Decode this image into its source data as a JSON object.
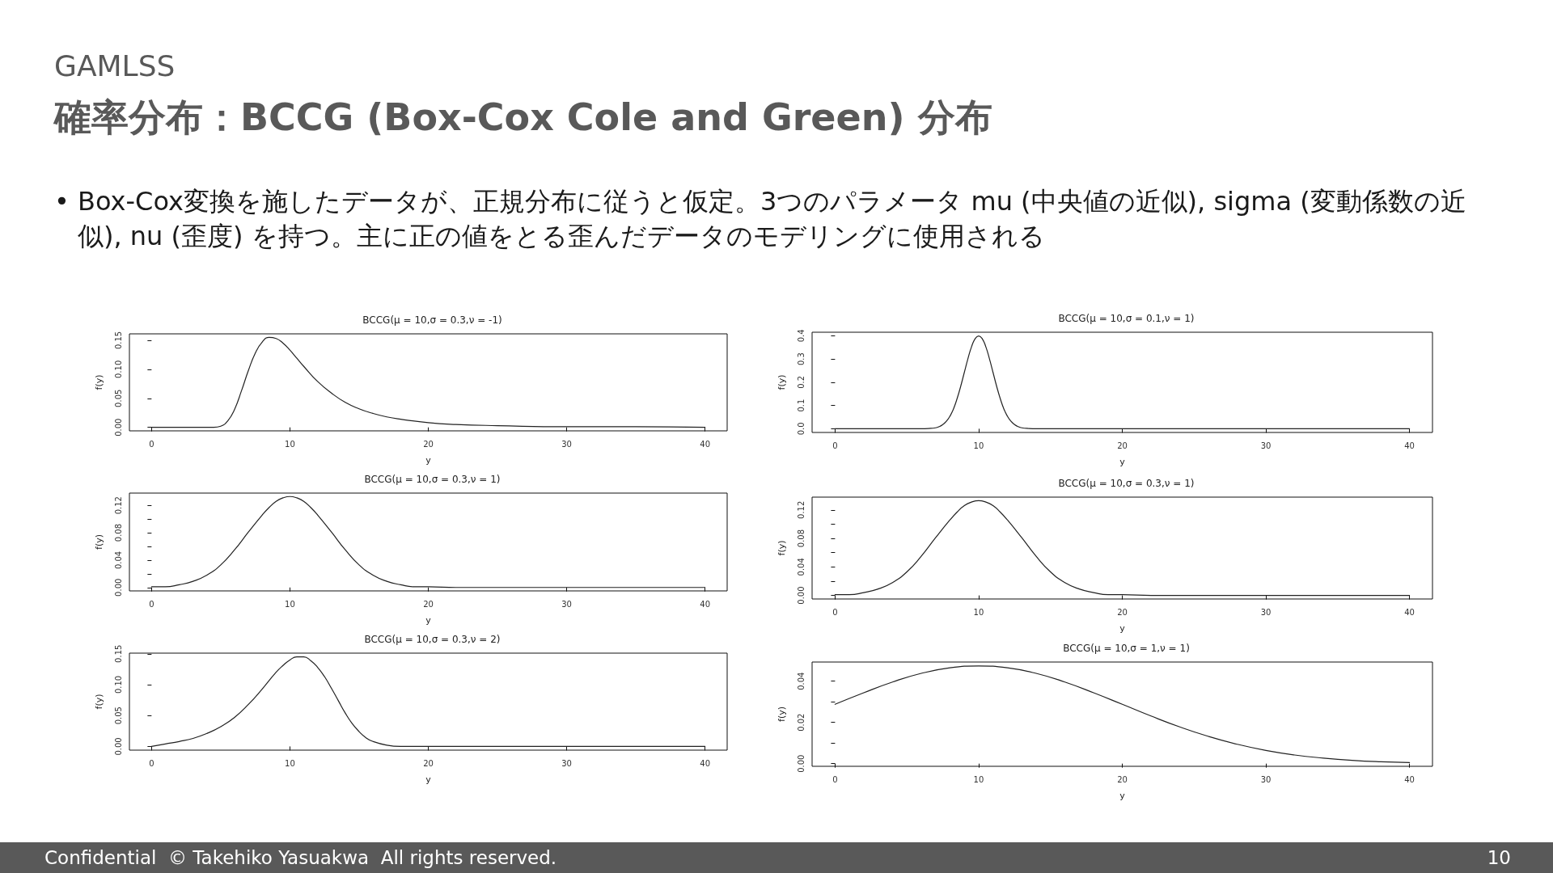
{
  "chart_data": [
    {
      "type": "other",
      "title": "確率分布：BCCG (Box-Cox Cole and Green) 分布",
      "subtitle": "GAMLSS",
      "annotations": [
        "• Box-Cox変換を施したデータが、正規分布に従うと仮定。3つのパラメータ mu (中央値の近似), sigma (変動係数の近似), nu (歪度) を持つ。主に正の値をとる歪んだデータのモデリングに使用される",
        "Confidential  © Takehiko Yasuakwa  All rights reserved.",
        "10"
      ]
    },
    {
      "type": "line",
      "title": "BCCG(μ = 10,σ = 0.3,ν = -1)",
      "xlabel": "y",
      "ylabel": "f(y)",
      "color": "#222222",
      "marker": "none",
      "line_style": "solid",
      "x": [
        0,
        1,
        2,
        3,
        4,
        4.5,
        5,
        5.5,
        6,
        6.5,
        7,
        7.5,
        8,
        8.5,
        9,
        9.5,
        10,
        10.5,
        11,
        12,
        13,
        14,
        15,
        16,
        17,
        18,
        20,
        22,
        25,
        30,
        35,
        40
      ],
      "values": [
        0,
        0,
        0,
        0,
        0,
        0,
        0.002,
        0.011,
        0.031,
        0.063,
        0.098,
        0.128,
        0.147,
        0.155,
        0.153,
        0.145,
        0.133,
        0.119,
        0.105,
        0.079,
        0.059,
        0.043,
        0.032,
        0.024,
        0.018,
        0.014,
        0.008,
        0.005,
        0.003,
        0.001,
        0.001,
        0
      ],
      "xlim": [
        -1.6,
        41.6
      ],
      "xticks": [
        0,
        10,
        20,
        30,
        40
      ],
      "ylim": [
        -0.006,
        0.161
      ],
      "yticks": [
        {
          "value": 0,
          "label": "0.00"
        },
        0.05,
        {
          "value": 0.1,
          "label": "0.10"
        },
        0.15
      ]
    },
    {
      "type": "line",
      "title": "BCCG(μ = 10,σ = 0.1,ν = 1)",
      "xlabel": "y",
      "ylabel": "f(y)",
      "color": "#222222",
      "marker": "none",
      "line_style": "solid",
      "x": [
        0,
        2,
        4,
        6,
        6.5,
        7,
        7.25,
        7.5,
        7.75,
        8,
        8.25,
        8.5,
        8.75,
        9,
        9.25,
        9.5,
        9.75,
        10,
        10.25,
        10.5,
        10.75,
        11,
        11.25,
        11.5,
        11.75,
        12,
        12.25,
        12.5,
        12.75,
        13,
        13.5,
        14,
        20,
        30,
        40
      ],
      "values": [
        0,
        0,
        0,
        0,
        0.001,
        0.004,
        0.009,
        0.018,
        0.032,
        0.054,
        0.086,
        0.13,
        0.183,
        0.242,
        0.301,
        0.352,
        0.387,
        0.399,
        0.387,
        0.352,
        0.301,
        0.242,
        0.183,
        0.13,
        0.086,
        0.054,
        0.032,
        0.018,
        0.009,
        0.004,
        0.001,
        0,
        0,
        0,
        0
      ],
      "xlim": [
        -1.6,
        41.6
      ],
      "xticks": [
        0,
        10,
        20,
        30,
        40
      ],
      "ylim": [
        -0.016,
        0.415
      ],
      "yticks": [
        {
          "value": 0,
          "label": "0.0"
        },
        0.1,
        0.2,
        0.3,
        0.4
      ]
    },
    {
      "type": "line",
      "title": "BCCG(μ = 10,σ = 0.3,ν = 1)",
      "xlabel": "y",
      "ylabel": "f(y)",
      "color": "#222222",
      "marker": "none",
      "line_style": "solid",
      "x": [
        0,
        1,
        2,
        3,
        4,
        5,
        6,
        7,
        8,
        8.5,
        9,
        9.5,
        10,
        10.5,
        11,
        11.5,
        12,
        13,
        14,
        15,
        16,
        17,
        18,
        19,
        20,
        22,
        25,
        30,
        35,
        40
      ],
      "values": [
        0.001,
        0.001,
        0.004,
        0.009,
        0.018,
        0.033,
        0.055,
        0.081,
        0.106,
        0.117,
        0.126,
        0.131,
        0.133,
        0.131,
        0.126,
        0.117,
        0.106,
        0.081,
        0.055,
        0.033,
        0.018,
        0.009,
        0.004,
        0.001,
        0.001,
        0,
        0,
        0,
        0,
        0
      ],
      "xlim": [
        -1.6,
        41.6
      ],
      "xticks": [
        0,
        10,
        20,
        30,
        40
      ],
      "ylim": [
        -0.005,
        0.138
      ],
      "yticks": [
        {
          "value": 0,
          "label": "0.00"
        },
        {
          "value": 0.02,
          "label": null
        },
        0.04,
        {
          "value": 0.06,
          "label": null
        },
        0.08,
        {
          "value": 0.1,
          "label": null
        },
        0.12
      ]
    },
    {
      "type": "line",
      "title": "BCCG(μ = 10,σ = 0.3,ν = 1)",
      "xlabel": "y",
      "ylabel": "f(y)",
      "color": "#222222",
      "marker": "none",
      "line_style": "solid",
      "x": [
        0,
        1,
        2,
        3,
        4,
        5,
        6,
        7,
        8,
        8.5,
        9,
        9.5,
        10,
        10.5,
        11,
        11.5,
        12,
        13,
        14,
        15,
        16,
        17,
        18,
        19,
        20,
        22,
        25,
        30,
        35,
        40
      ],
      "values": [
        0.001,
        0.001,
        0.004,
        0.009,
        0.018,
        0.033,
        0.055,
        0.081,
        0.106,
        0.117,
        0.126,
        0.131,
        0.133,
        0.131,
        0.126,
        0.117,
        0.106,
        0.081,
        0.055,
        0.033,
        0.018,
        0.009,
        0.004,
        0.001,
        0.001,
        0,
        0,
        0,
        0,
        0
      ],
      "xlim": [
        -1.6,
        41.6
      ],
      "xticks": [
        0,
        10,
        20,
        30,
        40
      ],
      "ylim": [
        -0.005,
        0.138
      ],
      "yticks": [
        {
          "value": 0,
          "label": "0.00"
        },
        {
          "value": 0.02,
          "label": null
        },
        0.04,
        {
          "value": 0.06,
          "label": null
        },
        0.08,
        {
          "value": 0.1,
          "label": null
        },
        0.12
      ]
    },
    {
      "type": "line",
      "title": "BCCG(μ = 10,σ = 0.3,ν = 2)",
      "xlabel": "y",
      "ylabel": "f(y)",
      "color": "#222222",
      "marker": "none",
      "line_style": "solid",
      "x": [
        0,
        1,
        2,
        3,
        4,
        5,
        6,
        7,
        8,
        9,
        9.5,
        10,
        10.5,
        11,
        11.5,
        12,
        12.5,
        13,
        13.5,
        14,
        14.5,
        15,
        15.5,
        16,
        17,
        18,
        20,
        25,
        30,
        35,
        40
      ],
      "values": [
        0,
        0.004,
        0.008,
        0.013,
        0.021,
        0.032,
        0.047,
        0.068,
        0.093,
        0.12,
        0.131,
        0.14,
        0.145,
        0.145,
        0.139,
        0.128,
        0.113,
        0.094,
        0.074,
        0.054,
        0.037,
        0.024,
        0.014,
        0.008,
        0.002,
        0,
        0,
        0,
        0,
        0,
        0
      ],
      "xlim": [
        -1.6,
        41.6
      ],
      "xticks": [
        0,
        10,
        20,
        30,
        40
      ],
      "ylim": [
        -0.006,
        0.151
      ],
      "yticks": [
        {
          "value": 0,
          "label": "0.00"
        },
        0.05,
        {
          "value": 0.1,
          "label": "0.10"
        },
        0.15
      ]
    },
    {
      "type": "line",
      "title": "BCCG(μ = 10,σ = 1,ν = 1)",
      "xlabel": "y",
      "ylabel": "f(y)",
      "color": "#222222",
      "marker": "none",
      "line_style": "solid",
      "x": [
        0,
        2,
        4,
        6,
        8,
        10,
        12,
        14,
        16,
        18,
        20,
        22,
        24,
        26,
        28,
        30,
        32,
        34,
        36,
        38,
        40
      ],
      "values": [
        0.0288,
        0.0344,
        0.0396,
        0.0438,
        0.0465,
        0.0474,
        0.0465,
        0.0438,
        0.0396,
        0.0344,
        0.0288,
        0.0231,
        0.0178,
        0.0132,
        0.0094,
        0.0064,
        0.0042,
        0.0027,
        0.0016,
        0.0009,
        0.0005
      ],
      "xlim": [
        -1.6,
        41.6
      ],
      "xticks": [
        0,
        10,
        20,
        30,
        40
      ],
      "ylim": [
        -0.0013,
        0.0493
      ],
      "yticks": [
        {
          "value": 0,
          "label": "0.00"
        },
        {
          "value": 0.01,
          "label": null
        },
        0.02,
        {
          "value": 0.03,
          "label": null
        },
        0.04
      ]
    }
  ]
}
